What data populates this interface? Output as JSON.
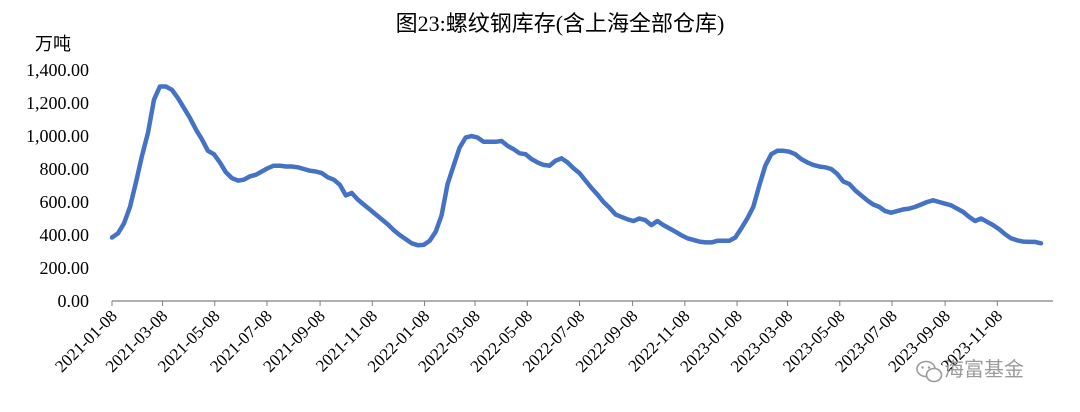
{
  "chart_data": {
    "type": "line",
    "title": "图23:螺纹钢库存(含上海全部仓库)",
    "ylabel": "万吨",
    "xlabel": "",
    "ylim": [
      0,
      1400
    ],
    "yticks": [
      "0.00",
      "200.00",
      "400.00",
      "600.00",
      "800.00",
      "1,000.00",
      "1,200.00",
      "1,400.00"
    ],
    "xlim": [
      "2021-01-08",
      "2024-01-12"
    ],
    "xticks": [
      "2021-01-08",
      "2021-03-08",
      "2021-05-08",
      "2021-07-08",
      "2021-09-08",
      "2021-11-08",
      "2022-01-08",
      "2022-03-08",
      "2022-05-08",
      "2022-07-08",
      "2022-09-08",
      "2022-11-08",
      "2023-01-08",
      "2023-03-08",
      "2023-05-08",
      "2023-07-08",
      "2023-09-08",
      "2023-11-08"
    ],
    "grid": false,
    "color": "#4472C4",
    "series": [
      {
        "name": "",
        "points": [
          [
            "2021-01-08",
            385
          ],
          [
            "2021-01-15",
            410
          ],
          [
            "2021-01-22",
            470
          ],
          [
            "2021-01-29",
            570
          ],
          [
            "2021-02-05",
            720
          ],
          [
            "2021-02-12",
            880
          ],
          [
            "2021-02-19",
            1020
          ],
          [
            "2021-02-26",
            1220
          ],
          [
            "2021-03-05",
            1300
          ],
          [
            "2021-03-12",
            1300
          ],
          [
            "2021-03-19",
            1280
          ],
          [
            "2021-03-26",
            1230
          ],
          [
            "2021-04-02",
            1170
          ],
          [
            "2021-04-09",
            1110
          ],
          [
            "2021-04-16",
            1040
          ],
          [
            "2021-04-23",
            980
          ],
          [
            "2021-04-30",
            910
          ],
          [
            "2021-05-07",
            890
          ],
          [
            "2021-05-14",
            840
          ],
          [
            "2021-05-21",
            780
          ],
          [
            "2021-05-28",
            745
          ],
          [
            "2021-06-04",
            730
          ],
          [
            "2021-06-11",
            735
          ],
          [
            "2021-06-18",
            755
          ],
          [
            "2021-06-25",
            765
          ],
          [
            "2021-07-02",
            785
          ],
          [
            "2021-07-09",
            805
          ],
          [
            "2021-07-16",
            820
          ],
          [
            "2021-07-23",
            820
          ],
          [
            "2021-07-30",
            815
          ],
          [
            "2021-08-06",
            815
          ],
          [
            "2021-08-13",
            810
          ],
          [
            "2021-08-20",
            800
          ],
          [
            "2021-08-27",
            790
          ],
          [
            "2021-09-03",
            785
          ],
          [
            "2021-09-10",
            775
          ],
          [
            "2021-09-17",
            750
          ],
          [
            "2021-09-24",
            735
          ],
          [
            "2021-10-01",
            705
          ],
          [
            "2021-10-08",
            640
          ],
          [
            "2021-10-15",
            655
          ],
          [
            "2021-10-22",
            615
          ],
          [
            "2021-10-29",
            585
          ],
          [
            "2021-11-05",
            555
          ],
          [
            "2021-11-12",
            525
          ],
          [
            "2021-11-19",
            495
          ],
          [
            "2021-11-26",
            465
          ],
          [
            "2021-12-03",
            430
          ],
          [
            "2021-12-10",
            400
          ],
          [
            "2021-12-17",
            375
          ],
          [
            "2021-12-24",
            350
          ],
          [
            "2021-12-31",
            338
          ],
          [
            "2022-01-07",
            340
          ],
          [
            "2022-01-14",
            365
          ],
          [
            "2022-01-21",
            420
          ],
          [
            "2022-01-28",
            520
          ],
          [
            "2022-02-04",
            710
          ],
          [
            "2022-02-11",
            820
          ],
          [
            "2022-02-18",
            930
          ],
          [
            "2022-02-25",
            990
          ],
          [
            "2022-03-04",
            1000
          ],
          [
            "2022-03-11",
            990
          ],
          [
            "2022-03-18",
            965
          ],
          [
            "2022-03-25",
            965
          ],
          [
            "2022-04-01",
            965
          ],
          [
            "2022-04-08",
            970
          ],
          [
            "2022-04-15",
            940
          ],
          [
            "2022-04-22",
            920
          ],
          [
            "2022-04-29",
            895
          ],
          [
            "2022-05-06",
            890
          ],
          [
            "2022-05-13",
            860
          ],
          [
            "2022-05-20",
            840
          ],
          [
            "2022-05-27",
            825
          ],
          [
            "2022-06-03",
            820
          ],
          [
            "2022-06-10",
            850
          ],
          [
            "2022-06-17",
            865
          ],
          [
            "2022-06-24",
            840
          ],
          [
            "2022-07-01",
            805
          ],
          [
            "2022-07-08",
            775
          ],
          [
            "2022-07-15",
            730
          ],
          [
            "2022-07-22",
            685
          ],
          [
            "2022-07-29",
            645
          ],
          [
            "2022-08-05",
            600
          ],
          [
            "2022-08-12",
            565
          ],
          [
            "2022-08-19",
            525
          ],
          [
            "2022-08-26",
            510
          ],
          [
            "2022-09-02",
            495
          ],
          [
            "2022-09-09",
            485
          ],
          [
            "2022-09-16",
            500
          ],
          [
            "2022-09-23",
            490
          ],
          [
            "2022-09-30",
            460
          ],
          [
            "2022-10-07",
            485
          ],
          [
            "2022-10-14",
            460
          ],
          [
            "2022-10-21",
            440
          ],
          [
            "2022-10-28",
            420
          ],
          [
            "2022-11-04",
            398
          ],
          [
            "2022-11-11",
            380
          ],
          [
            "2022-11-18",
            370
          ],
          [
            "2022-11-25",
            360
          ],
          [
            "2022-12-02",
            355
          ],
          [
            "2022-12-09",
            355
          ],
          [
            "2022-12-16",
            365
          ],
          [
            "2022-12-23",
            365
          ],
          [
            "2022-12-30",
            365
          ],
          [
            "2023-01-06",
            385
          ],
          [
            "2023-01-13",
            440
          ],
          [
            "2023-01-20",
            500
          ],
          [
            "2023-01-27",
            570
          ],
          [
            "2023-02-03",
            700
          ],
          [
            "2023-02-10",
            820
          ],
          [
            "2023-02-17",
            890
          ],
          [
            "2023-02-24",
            910
          ],
          [
            "2023-03-03",
            910
          ],
          [
            "2023-03-10",
            905
          ],
          [
            "2023-03-17",
            890
          ],
          [
            "2023-03-24",
            860
          ],
          [
            "2023-03-31",
            840
          ],
          [
            "2023-04-07",
            825
          ],
          [
            "2023-04-14",
            815
          ],
          [
            "2023-04-21",
            810
          ],
          [
            "2023-04-28",
            800
          ],
          [
            "2023-05-05",
            770
          ],
          [
            "2023-05-12",
            725
          ],
          [
            "2023-05-19",
            710
          ],
          [
            "2023-05-26",
            670
          ],
          [
            "2023-06-02",
            640
          ],
          [
            "2023-06-09",
            610
          ],
          [
            "2023-06-16",
            585
          ],
          [
            "2023-06-23",
            570
          ],
          [
            "2023-06-30",
            545
          ],
          [
            "2023-07-07",
            535
          ],
          [
            "2023-07-14",
            545
          ],
          [
            "2023-07-21",
            555
          ],
          [
            "2023-07-28",
            560
          ],
          [
            "2023-08-04",
            570
          ],
          [
            "2023-08-11",
            585
          ],
          [
            "2023-08-18",
            600
          ],
          [
            "2023-08-25",
            610
          ],
          [
            "2023-09-01",
            600
          ],
          [
            "2023-09-08",
            590
          ],
          [
            "2023-09-15",
            580
          ],
          [
            "2023-09-22",
            560
          ],
          [
            "2023-09-29",
            540
          ],
          [
            "2023-10-06",
            510
          ],
          [
            "2023-10-13",
            485
          ],
          [
            "2023-10-20",
            500
          ],
          [
            "2023-10-27",
            480
          ],
          [
            "2023-11-03",
            460
          ],
          [
            "2023-11-10",
            435
          ],
          [
            "2023-11-17",
            405
          ],
          [
            "2023-11-24",
            380
          ],
          [
            "2023-12-01",
            368
          ],
          [
            "2023-12-08",
            360
          ],
          [
            "2023-12-15",
            358
          ],
          [
            "2023-12-22",
            358
          ],
          [
            "2023-12-29",
            350
          ]
        ]
      }
    ]
  },
  "watermark": {
    "icon": "wechat-icon",
    "text": "海富基金"
  }
}
